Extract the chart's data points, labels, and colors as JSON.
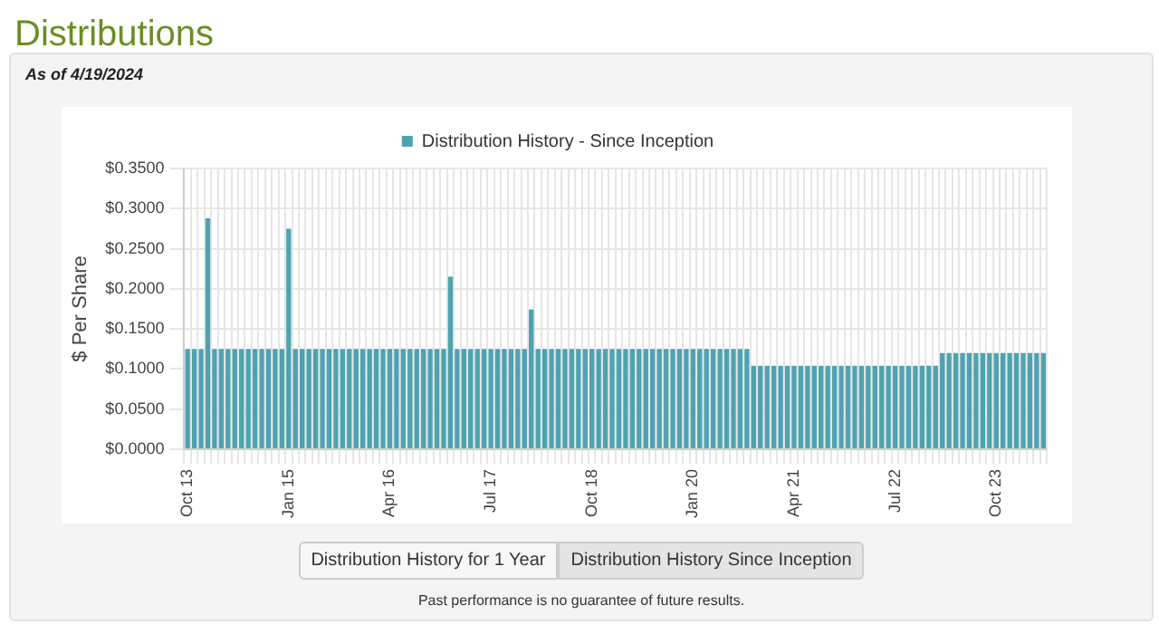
{
  "chart_data": {
    "type": "bar",
    "title": "Distributions",
    "subtitle": "As of 4/19/2024",
    "ylabel": "$ Per Share",
    "categories": [
      "Oct 13",
      null,
      null,
      null,
      null,
      null,
      null,
      null,
      null,
      null,
      null,
      null,
      null,
      null,
      null,
      "Jan 15",
      null,
      null,
      null,
      null,
      null,
      null,
      null,
      null,
      null,
      null,
      null,
      null,
      null,
      null,
      "Apr 16",
      null,
      null,
      null,
      null,
      null,
      null,
      null,
      null,
      null,
      null,
      null,
      null,
      null,
      null,
      "Jul 17",
      null,
      null,
      null,
      null,
      null,
      null,
      null,
      null,
      null,
      null,
      null,
      null,
      null,
      null,
      "Oct 18",
      null,
      null,
      null,
      null,
      null,
      null,
      null,
      null,
      null,
      null,
      null,
      null,
      null,
      null,
      "Jan 20",
      null,
      null,
      null,
      null,
      null,
      null,
      null,
      null,
      null,
      null,
      null,
      null,
      null,
      null,
      "Apr 21",
      null,
      null,
      null,
      null,
      null,
      null,
      null,
      null,
      null,
      null,
      null,
      null,
      null,
      null,
      "Jul 22",
      null,
      null,
      null,
      null,
      null,
      null,
      null,
      null,
      null,
      null,
      null,
      null,
      null,
      null,
      "Oct 23",
      null,
      null,
      null,
      null,
      null,
      null,
      null
    ],
    "series": [
      {
        "name": "Distribution History - Since Inception",
        "color": "#4fa3b0",
        "values": [
          0.125,
          0.125,
          0.125,
          0.288,
          0.125,
          0.125,
          0.125,
          0.125,
          0.125,
          0.125,
          0.125,
          0.125,
          0.125,
          0.125,
          0.125,
          0.275,
          0.125,
          0.125,
          0.125,
          0.125,
          0.125,
          0.125,
          0.125,
          0.125,
          0.125,
          0.125,
          0.125,
          0.125,
          0.125,
          0.125,
          0.125,
          0.125,
          0.125,
          0.125,
          0.125,
          0.125,
          0.125,
          0.125,
          0.125,
          0.215,
          0.125,
          0.125,
          0.125,
          0.125,
          0.125,
          0.125,
          0.125,
          0.125,
          0.125,
          0.125,
          0.125,
          0.174,
          0.125,
          0.125,
          0.125,
          0.125,
          0.125,
          0.125,
          0.125,
          0.125,
          0.125,
          0.125,
          0.125,
          0.125,
          0.125,
          0.125,
          0.125,
          0.125,
          0.125,
          0.125,
          0.125,
          0.125,
          0.125,
          0.125,
          0.125,
          0.125,
          0.125,
          0.125,
          0.125,
          0.125,
          0.125,
          0.125,
          0.125,
          0.125,
          0.104,
          0.104,
          0.104,
          0.104,
          0.104,
          0.104,
          0.104,
          0.104,
          0.104,
          0.104,
          0.104,
          0.104,
          0.104,
          0.104,
          0.104,
          0.104,
          0.104,
          0.104,
          0.104,
          0.104,
          0.104,
          0.104,
          0.104,
          0.104,
          0.104,
          0.104,
          0.104,
          0.104,
          0.12,
          0.12,
          0.12,
          0.12,
          0.12,
          0.12,
          0.12,
          0.12,
          0.12,
          0.12,
          0.12,
          0.12,
          0.12,
          0.12,
          0.12,
          0.12
        ]
      }
    ],
    "ylim": [
      0,
      0.35
    ],
    "yticks": [
      {
        "value": 0,
        "label": "$0.0000"
      },
      {
        "value": 0.05,
        "label": "$0.0500"
      },
      {
        "value": 0.1,
        "label": "$0.1000"
      },
      {
        "value": 0.15,
        "label": "$0.1500"
      },
      {
        "value": 0.2,
        "label": "$0.2000"
      },
      {
        "value": 0.25,
        "label": "$0.2500"
      },
      {
        "value": 0.3,
        "label": "$0.3000"
      },
      {
        "value": 0.35,
        "label": "$0.3500"
      }
    ],
    "grid": true,
    "legend": "top",
    "annotations": [
      "Distribution History for 1 Year",
      "Distribution History Since Inception",
      "Past performance is no guarantee of future results."
    ]
  }
}
